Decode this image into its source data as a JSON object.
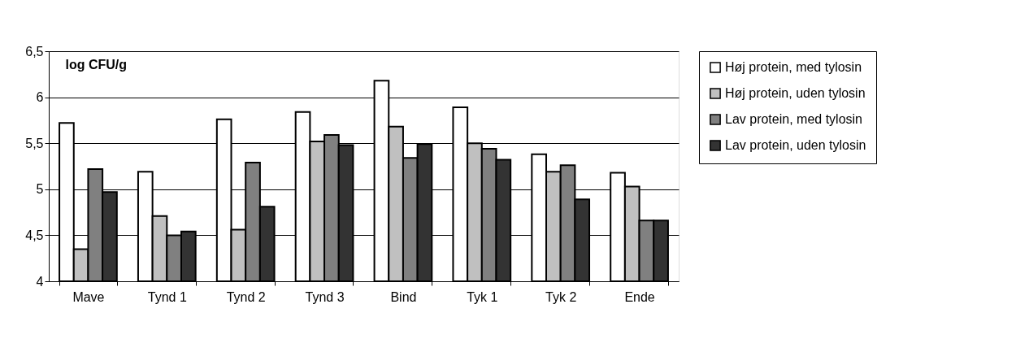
{
  "chart_data": {
    "type": "bar",
    "ylabel": "log CFU/g",
    "categories": [
      "Mave",
      "Tynd 1",
      "Tynd 2",
      "Tynd 3",
      "Bind",
      "Tyk 1",
      "Tyk 2",
      "Ende"
    ],
    "series": [
      {
        "name": "Høj protein, med tylosin",
        "color": "#ffffff",
        "values": [
          5.72,
          5.19,
          5.76,
          5.84,
          6.18,
          5.89,
          5.38,
          5.18
        ]
      },
      {
        "name": "Høj protein, uden tylosin",
        "color": "#c0c0c0",
        "values": [
          4.35,
          4.71,
          4.56,
          5.52,
          5.68,
          5.5,
          5.19,
          5.03
        ]
      },
      {
        "name": "Lav protein, med tylosin",
        "color": "#808080",
        "values": [
          5.22,
          4.5,
          5.29,
          5.59,
          5.34,
          5.44,
          5.26,
          4.66
        ]
      },
      {
        "name": "Lav protein, uden tylosin",
        "color": "#333333",
        "values": [
          4.97,
          4.54,
          4.81,
          5.48,
          5.49,
          5.32,
          4.89,
          4.66
        ]
      }
    ],
    "ylim": [
      4,
      6.5
    ],
    "yticks": [
      {
        "value": 4,
        "label": "4"
      },
      {
        "value": 4.5,
        "label": "4,5"
      },
      {
        "value": 5,
        "label": "5"
      },
      {
        "value": 5.5,
        "label": "5,5"
      },
      {
        "value": 6,
        "label": "6"
      },
      {
        "value": 6.5,
        "label": "6,5"
      }
    ],
    "grid": "y",
    "legend": "right"
  }
}
